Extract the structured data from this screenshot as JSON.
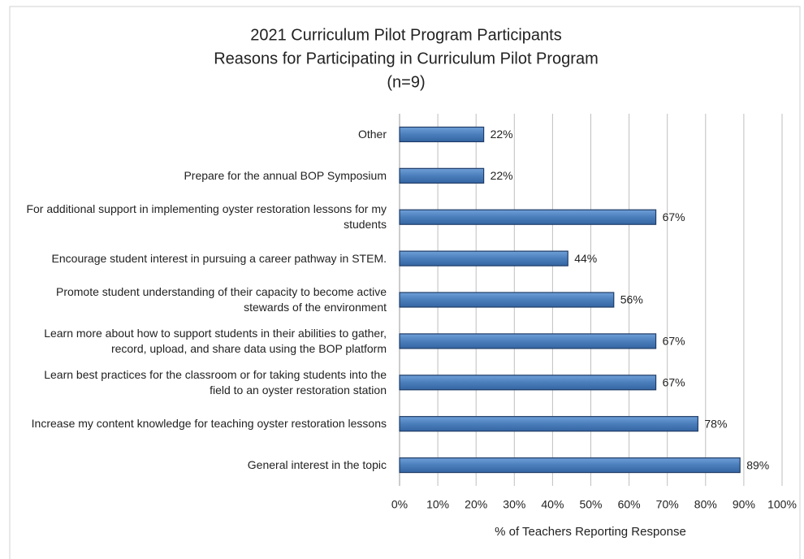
{
  "chart_data": {
    "type": "barh",
    "title": "2021 Curriculum Pilot Program Participants",
    "subtitle": "Reasons for Participating in Curriculum Pilot Program",
    "note": "(n=9)",
    "xlabel": "% of Teachers Reporting Response",
    "categories": [
      "Other",
      "Prepare for the annual BOP Symposium",
      "For additional support in implementing oyster restoration lessons for my students",
      "Encourage student interest in pursuing a career pathway in STEM.",
      "Promote student understanding of their capacity to become active stewards of the environment",
      "Learn more about how to support students in their abilities to gather, record, upload, and share data using the BOP platform",
      "Learn best practices for the classroom or for taking students into the field to an oyster restoration station",
      "Increase my content knowledge for teaching oyster restoration lessons",
      "General interest in the topic"
    ],
    "values": [
      22,
      22,
      67,
      44,
      56,
      67,
      67,
      78,
      89
    ],
    "value_labels": [
      "22%",
      "22%",
      "67%",
      "44%",
      "56%",
      "67%",
      "67%",
      "78%",
      "89%"
    ],
    "color": "#4a7ebb",
    "xlim": [
      0,
      100
    ],
    "xticks": [
      {
        "value": 0,
        "label": "0%"
      },
      {
        "value": 10,
        "label": "10%"
      },
      {
        "value": 20,
        "label": "20%"
      },
      {
        "value": 30,
        "label": "30%"
      },
      {
        "value": 40,
        "label": "40%"
      },
      {
        "value": 50,
        "label": "50%"
      },
      {
        "value": 60,
        "label": "60%"
      },
      {
        "value": 70,
        "label": "70%"
      },
      {
        "value": 80,
        "label": "80%"
      },
      {
        "value": 90,
        "label": "90%"
      },
      {
        "value": 100,
        "label": "100%"
      }
    ],
    "grid": true
  }
}
